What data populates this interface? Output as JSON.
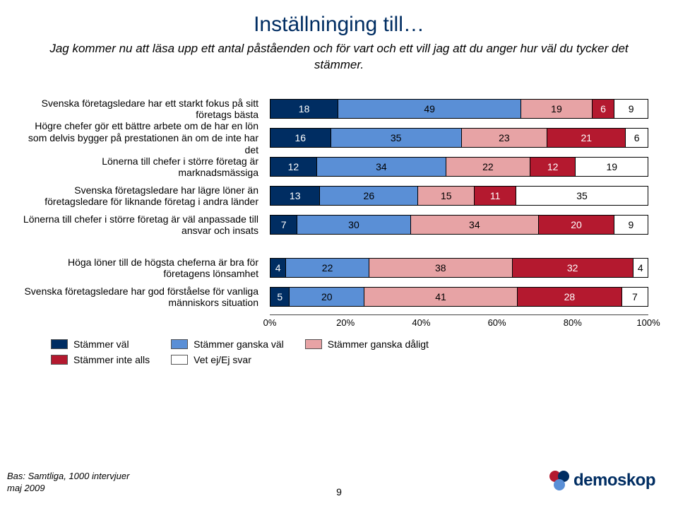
{
  "title": "Inställninging till…",
  "subtitle": "Jag kommer nu att läsa upp ett antal påståenden och för vart och ett vill jag att du anger hur väl du tycker det stämmer.",
  "colors": {
    "stammer_val": "#002d62",
    "stammer_ganska_val": "#5a8fd6",
    "stammer_ganska_daligt": "#e7a3a5",
    "stammer_inte_alls": "#b4192f",
    "vet_ej": "#ffffff",
    "bg": "#ffffff",
    "axis_text": "#000000"
  },
  "legend": [
    {
      "label": "Stämmer väl",
      "color": "#002d62",
      "text": "dark"
    },
    {
      "label": "Stämmer inte alls",
      "color": "#b4192f",
      "text": "dark"
    },
    {
      "label": "Stämmer ganska väl",
      "color": "#5a8fd6",
      "text": "light"
    },
    {
      "label": "Vet ej/Ej svar",
      "color": "#ffffff",
      "text": "light"
    },
    {
      "label": "Stämmer ganska dåligt",
      "color": "#e7a3a5",
      "text": "light"
    }
  ],
  "legend_layout": [
    [
      0,
      1
    ],
    [
      2,
      3
    ],
    [
      4
    ]
  ],
  "axis_ticks": [
    "0%",
    "20%",
    "40%",
    "60%",
    "80%",
    "100%"
  ],
  "rows": [
    {
      "label": "Svenska företagsledare har ett starkt fokus på sitt företags bästa",
      "segments": [
        {
          "v": 18,
          "c": 0
        },
        {
          "v": 49,
          "c": 2
        },
        {
          "v": 19,
          "c": 4
        },
        {
          "v": 6,
          "c": 3
        },
        {
          "v": 9,
          "c": 1,
          "hide_label": false
        }
      ]
    },
    {
      "label": "Högre chefer gör ett bättre arbete om de har en lön som delvis bygger på prestationen än om de inte har det",
      "segments": [
        {
          "v": 16,
          "c": 0
        },
        {
          "v": 35,
          "c": 2
        },
        {
          "v": 23,
          "c": 4
        },
        {
          "v": 21,
          "c": 3
        },
        {
          "v": 6,
          "c": 1,
          "hide_label": false
        }
      ]
    },
    {
      "label": "Lönerna till chefer i större företag är marknadsmässiga",
      "segments": [
        {
          "v": 12,
          "c": 0
        },
        {
          "v": 34,
          "c": 2
        },
        {
          "v": 22,
          "c": 4
        },
        {
          "v": 12,
          "c": 3
        },
        {
          "v": 19,
          "c": 1
        }
      ]
    },
    {
      "label": "Svenska företagsledare har lägre löner än företagsledare för liknande företag i andra länder",
      "segments": [
        {
          "v": 13,
          "c": 0
        },
        {
          "v": 26,
          "c": 2
        },
        {
          "v": 15,
          "c": 4
        },
        {
          "v": 11,
          "c": 3
        },
        {
          "v": 35,
          "c": 1
        }
      ]
    },
    {
      "label": "Lönerna till chefer i större företag är väl anpassade till ansvar och insats",
      "segments": [
        {
          "v": 7,
          "c": 0
        },
        {
          "v": 30,
          "c": 2
        },
        {
          "v": 34,
          "c": 4
        },
        {
          "v": 20,
          "c": 3
        },
        {
          "v": 9,
          "c": 1
        }
      ]
    },
    {
      "gap": true
    },
    {
      "label": "Höga löner till de högsta cheferna är bra för företagens lönsamhet",
      "segments": [
        {
          "v": 4,
          "c": 0
        },
        {
          "v": 22,
          "c": 2
        },
        {
          "v": 38,
          "c": 4
        },
        {
          "v": 32,
          "c": 3
        },
        {
          "v": 4,
          "c": 1
        }
      ]
    },
    {
      "label": "Svenska företagsledare har god förståelse för vanliga människors situation",
      "segments": [
        {
          "v": 5,
          "c": 0
        },
        {
          "v": 20,
          "c": 2
        },
        {
          "v": 41,
          "c": 4
        },
        {
          "v": 28,
          "c": 3
        },
        {
          "v": 7,
          "c": 1
        }
      ]
    }
  ],
  "color_map": [
    "#002d62",
    "#ffffff",
    "#5a8fd6",
    "#b4192f",
    "#e7a3a5"
  ],
  "text_map": [
    "dark",
    "light",
    "light",
    "dark",
    "light"
  ],
  "footer_line1": "Bas: Samtliga, 1000 intervjuer",
  "footer_line2": "maj 2009",
  "page_number": "9",
  "logo_text": "demoskop",
  "logo_colors": [
    "#b4192f",
    "#002d62",
    "#5a8fd6"
  ]
}
